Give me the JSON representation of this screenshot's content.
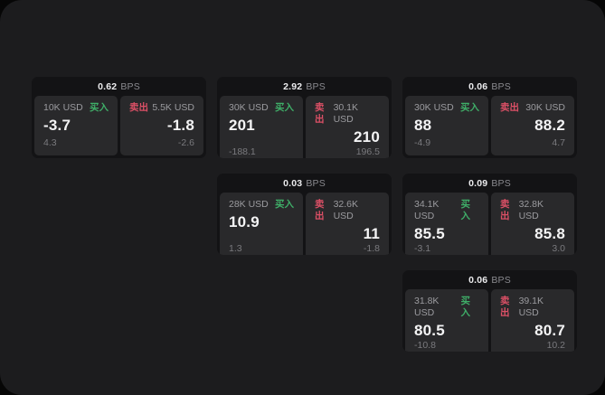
{
  "labels": {
    "bps_suffix": "BPS",
    "buy": "买入",
    "sell": "卖出"
  },
  "colors": {
    "outer_background": "#060606",
    "panel_background": "#1c1c1e",
    "card_background": "#131315",
    "tile_background": "#29292b",
    "buy_green": "#3fae68",
    "sell_red": "#dc5066",
    "primary_text": "#f4f4f5",
    "muted_text": "#9b9b9f"
  },
  "cards": [
    {
      "slot": {
        "row": 1,
        "col": 1
      },
      "bps": "0.62",
      "buy": {
        "size": "10K USD",
        "price": "-3.7",
        "delta": "4.3"
      },
      "sell": {
        "size": "5.5K USD",
        "price": "-1.8",
        "delta": "-2.6"
      }
    },
    {
      "slot": {
        "row": 1,
        "col": 2
      },
      "bps": "2.92",
      "buy": {
        "size": "30K USD",
        "price": "201",
        "delta": "-188.1"
      },
      "sell": {
        "size": "30.1K USD",
        "price": "210",
        "delta": "196.5"
      }
    },
    {
      "slot": {
        "row": 1,
        "col": 3
      },
      "bps": "0.06",
      "buy": {
        "size": "30K USD",
        "price": "88",
        "delta": "-4.9"
      },
      "sell": {
        "size": "30K USD",
        "price": "88.2",
        "delta": "4.7"
      }
    },
    {
      "slot": {
        "row": 2,
        "col": 2
      },
      "bps": "0.03",
      "buy": {
        "size": "28K USD",
        "price": "10.9",
        "delta": "1.3"
      },
      "sell": {
        "size": "32.6K USD",
        "price": "11",
        "delta": "-1.8"
      }
    },
    {
      "slot": {
        "row": 2,
        "col": 3
      },
      "bps": "0.09",
      "buy": {
        "size": "34.1K USD",
        "price": "85.5",
        "delta": "-3.1"
      },
      "sell": {
        "size": "32.8K USD",
        "price": "85.8",
        "delta": "3.0"
      }
    },
    {
      "slot": {
        "row": 3,
        "col": 3
      },
      "bps": "0.06",
      "buy": {
        "size": "31.8K USD",
        "price": "80.5",
        "delta": "-10.8"
      },
      "sell": {
        "size": "39.1K USD",
        "price": "80.7",
        "delta": "10.2"
      }
    }
  ]
}
